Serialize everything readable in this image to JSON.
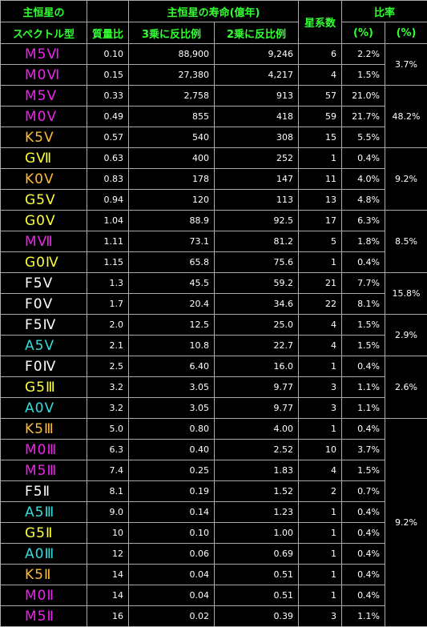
{
  "colors": {
    "M": "#ee22ee",
    "K": "#ffbb33",
    "G": "#ffff33",
    "F": "#ffffff",
    "A": "#33dddd",
    "header": "#33ff33"
  },
  "header": {
    "spectral_line1": "主恒星の",
    "spectral_line2": "スペクトル型",
    "mass": "質量比",
    "lifetime": "主恒星の寿命(億年)",
    "life3": "3乗に反比例",
    "life2": "2乗に反比例",
    "systems": "星系数",
    "ratio": "比率",
    "pct1": "(%)",
    "pct2": "(%)"
  },
  "rows": [
    {
      "spectral": "M5Ⅵ",
      "cls": "M",
      "mass": "0.10",
      "life3": "88,900",
      "life2": "9,246",
      "systems": "6",
      "pct": "2.2%"
    },
    {
      "spectral": "M0Ⅵ",
      "cls": "M",
      "mass": "0.15",
      "life3": "27,380",
      "life2": "4,217",
      "systems": "4",
      "pct": "1.5%"
    },
    {
      "spectral": "M5Ⅴ",
      "cls": "M",
      "mass": "0.33",
      "life3": "2,758",
      "life2": "913",
      "systems": "57",
      "pct": "21.0%"
    },
    {
      "spectral": "M0Ⅴ",
      "cls": "M",
      "mass": "0.49",
      "life3": "855",
      "life2": "418",
      "systems": "59",
      "pct": "21.7%"
    },
    {
      "spectral": "K5Ⅴ",
      "cls": "K",
      "mass": "0.57",
      "life3": "540",
      "life2": "308",
      "systems": "15",
      "pct": "5.5%"
    },
    {
      "spectral": "GⅦ",
      "cls": "G",
      "mass": "0.63",
      "life3": "400",
      "life2": "252",
      "systems": "1",
      "pct": "0.4%"
    },
    {
      "spectral": "K0Ⅴ",
      "cls": "K",
      "mass": "0.83",
      "life3": "178",
      "life2": "147",
      "systems": "11",
      "pct": "4.0%"
    },
    {
      "spectral": "G5Ⅴ",
      "cls": "G",
      "mass": "0.94",
      "life3": "120",
      "life2": "113",
      "systems": "13",
      "pct": "4.8%"
    },
    {
      "spectral": "G0Ⅴ",
      "cls": "G",
      "mass": "1.04",
      "life3": "88.9",
      "life2": "92.5",
      "systems": "17",
      "pct": "6.3%"
    },
    {
      "spectral": "MⅦ",
      "cls": "M",
      "mass": "1.11",
      "life3": "73.1",
      "life2": "81.2",
      "systems": "5",
      "pct": "1.8%"
    },
    {
      "spectral": "G0Ⅳ",
      "cls": "G",
      "mass": "1.15",
      "life3": "65.8",
      "life2": "75.6",
      "systems": "1",
      "pct": "0.4%"
    },
    {
      "spectral": "F5Ⅴ",
      "cls": "F",
      "mass": "1.3",
      "life3": "45.5",
      "life2": "59.2",
      "systems": "21",
      "pct": "7.7%"
    },
    {
      "spectral": "F0Ⅴ",
      "cls": "F",
      "mass": "1.7",
      "life3": "20.4",
      "life2": "34.6",
      "systems": "22",
      "pct": "8.1%"
    },
    {
      "spectral": "F5Ⅳ",
      "cls": "F",
      "mass": "2.0",
      "life3": "12.5",
      "life2": "25.0",
      "systems": "4",
      "pct": "1.5%"
    },
    {
      "spectral": "A5Ⅴ",
      "cls": "A",
      "mass": "2.1",
      "life3": "10.8",
      "life2": "22.7",
      "systems": "4",
      "pct": "1.5%"
    },
    {
      "spectral": "F0Ⅳ",
      "cls": "F",
      "mass": "2.5",
      "life3": "6.40",
      "life2": "16.0",
      "systems": "1",
      "pct": "0.4%"
    },
    {
      "spectral": "G5Ⅲ",
      "cls": "G",
      "mass": "3.2",
      "life3": "3.05",
      "life2": "9.77",
      "systems": "3",
      "pct": "1.1%"
    },
    {
      "spectral": "A0Ⅴ",
      "cls": "A",
      "mass": "3.2",
      "life3": "3.05",
      "life2": "9.77",
      "systems": "3",
      "pct": "1.1%"
    },
    {
      "spectral": "K5Ⅲ",
      "cls": "K",
      "mass": "5.0",
      "life3": "0.80",
      "life2": "4.00",
      "systems": "1",
      "pct": "0.4%"
    },
    {
      "spectral": "M0Ⅲ",
      "cls": "M",
      "mass": "6.3",
      "life3": "0.40",
      "life2": "2.52",
      "systems": "10",
      "pct": "3.7%"
    },
    {
      "spectral": "M5Ⅲ",
      "cls": "M",
      "mass": "7.4",
      "life3": "0.25",
      "life2": "1.83",
      "systems": "4",
      "pct": "1.5%"
    },
    {
      "spectral": "F5Ⅱ",
      "cls": "F",
      "mass": "8.1",
      "life3": "0.19",
      "life2": "1.52",
      "systems": "2",
      "pct": "0.7%"
    },
    {
      "spectral": "A5Ⅲ",
      "cls": "A",
      "mass": "9.0",
      "life3": "0.14",
      "life2": "1.23",
      "systems": "1",
      "pct": "0.4%"
    },
    {
      "spectral": "G5Ⅱ",
      "cls": "G",
      "mass": "10",
      "life3": "0.10",
      "life2": "1.00",
      "systems": "1",
      "pct": "0.4%"
    },
    {
      "spectral": "A0Ⅲ",
      "cls": "A",
      "mass": "12",
      "life3": "0.06",
      "life2": "0.69",
      "systems": "1",
      "pct": "0.4%"
    },
    {
      "spectral": "K5Ⅱ",
      "cls": "K",
      "mass": "14",
      "life3": "0.04",
      "life2": "0.51",
      "systems": "1",
      "pct": "0.4%"
    },
    {
      "spectral": "M0Ⅱ",
      "cls": "M",
      "mass": "14",
      "life3": "0.04",
      "life2": "0.51",
      "systems": "1",
      "pct": "0.4%"
    },
    {
      "spectral": "M5Ⅱ",
      "cls": "M",
      "mass": "16",
      "life3": "0.02",
      "life2": "0.39",
      "systems": "3",
      "pct": "1.1%"
    }
  ],
  "groups": [
    {
      "value": "3.7%",
      "span": 2
    },
    {
      "value": "48.2%",
      "span": 3
    },
    {
      "value": "9.2%",
      "span": 3
    },
    {
      "value": "8.5%",
      "span": 3
    },
    {
      "value": "15.8%",
      "span": 2
    },
    {
      "value": "2.9%",
      "span": 2
    },
    {
      "value": "2.6%",
      "span": 3
    },
    {
      "value": "9.2%",
      "span": 10
    }
  ]
}
